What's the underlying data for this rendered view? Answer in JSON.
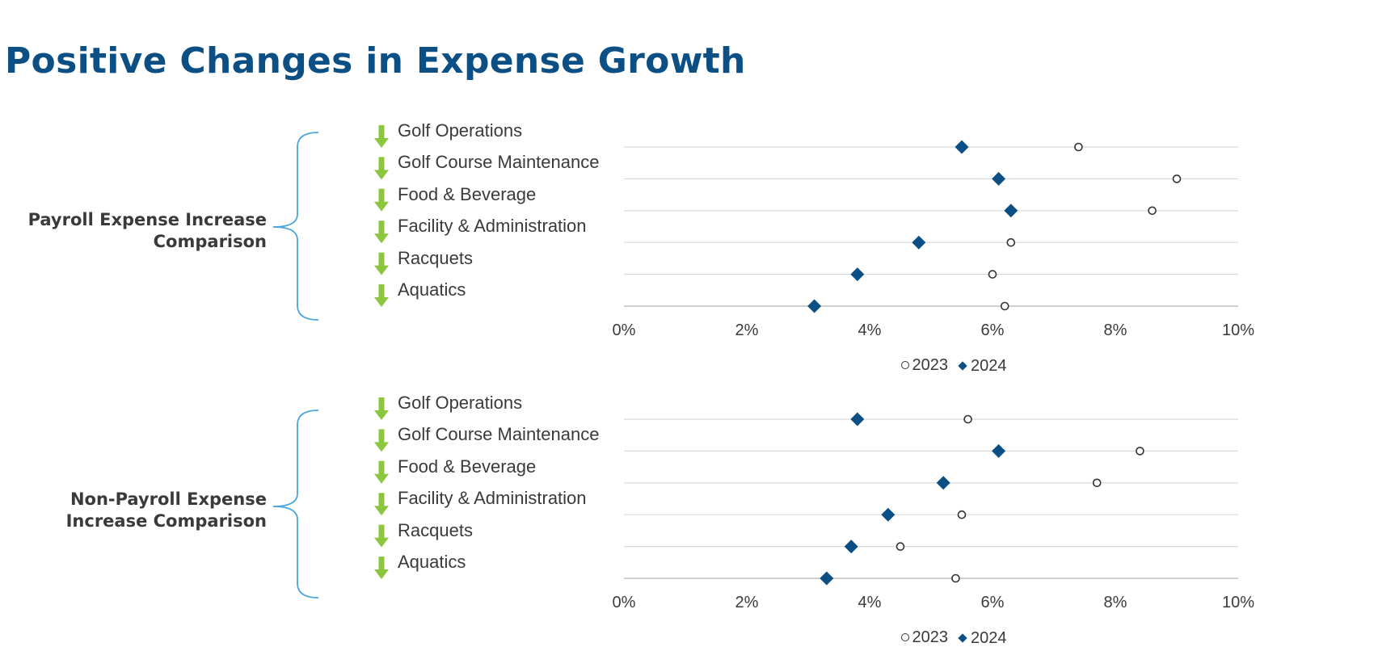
{
  "page": {
    "title": "Positive Changes in Expense Growth"
  },
  "colors": {
    "title": "#0b4f85",
    "series_2024": "#0b4f85",
    "marker_2023_stroke": "#333333",
    "bracket": "#4aa6dd",
    "down_arrow": "#8cc63f",
    "gridline": "#d9d9d9",
    "text": "#3a3a3a"
  },
  "icons": {
    "category_indicator": "down-arrow-icon",
    "group_indicator": "curly-brace-icon"
  },
  "chart_data": [
    {
      "type": "scatter",
      "group_label": "Payroll Expense Increase Comparison",
      "categories": [
        "Golf Operations",
        "Golf Course Maintenance",
        "Food & Beverage",
        "Facility & Administration",
        "Racquets",
        "Aquatics"
      ],
      "series": [
        {
          "name": "2023",
          "marker": "circle",
          "values": [
            7.4,
            9.0,
            8.6,
            6.3,
            6.0,
            6.2
          ]
        },
        {
          "name": "2024",
          "marker": "diamond",
          "values": [
            5.5,
            6.1,
            6.3,
            4.8,
            3.8,
            3.1
          ]
        }
      ],
      "xlim": [
        0,
        10
      ],
      "x_ticks": [
        "0%",
        "2%",
        "4%",
        "6%",
        "8%",
        "10%"
      ],
      "legend": {
        "placement": "bottom",
        "entries": [
          "2023",
          "2024"
        ]
      },
      "grid": "horizontal"
    },
    {
      "type": "scatter",
      "group_label": "Non-Payroll Expense Increase Comparison",
      "categories": [
        "Golf Operations",
        "Golf Course Maintenance",
        "Food & Beverage",
        "Facility & Administration",
        "Racquets",
        "Aquatics"
      ],
      "series": [
        {
          "name": "2023",
          "marker": "circle",
          "values": [
            5.6,
            8.4,
            7.7,
            5.5,
            4.5,
            5.4
          ]
        },
        {
          "name": "2024",
          "marker": "diamond",
          "values": [
            3.8,
            6.1,
            5.2,
            4.3,
            3.7,
            3.3
          ]
        }
      ],
      "xlim": [
        0,
        10
      ],
      "x_ticks": [
        "0%",
        "2%",
        "4%",
        "6%",
        "8%",
        "10%"
      ],
      "legend": {
        "placement": "bottom",
        "entries": [
          "2023",
          "2024"
        ]
      },
      "grid": "horizontal"
    }
  ]
}
